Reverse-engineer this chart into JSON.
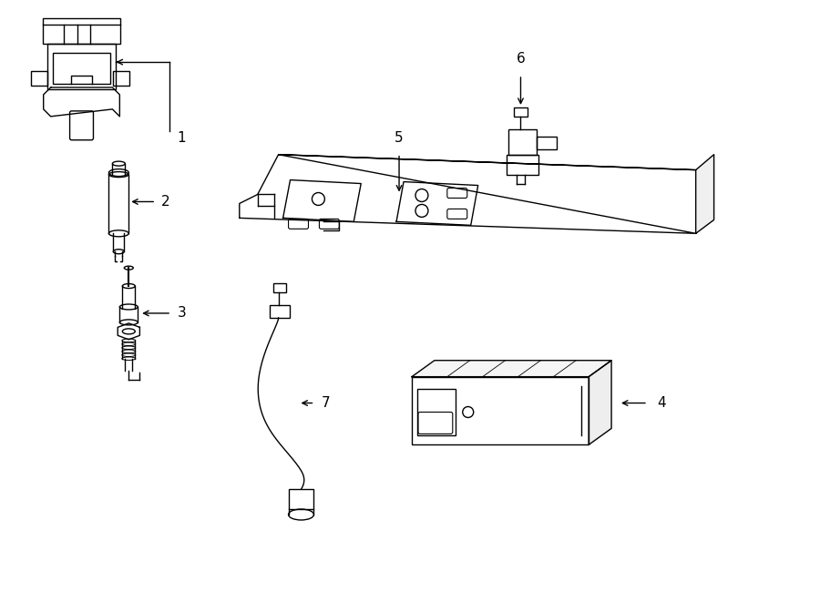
{
  "bg_color": "#ffffff",
  "line_color": "#000000",
  "fig_width": 9.0,
  "fig_height": 6.61,
  "dpi": 100,
  "label_fontsize": 11
}
